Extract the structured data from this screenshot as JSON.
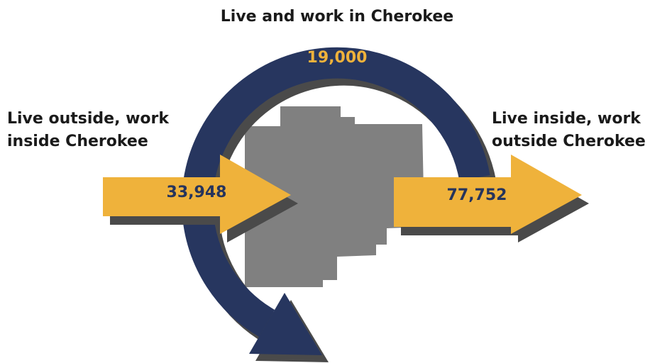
{
  "title": "Live and work in Cherokee",
  "internal": {
    "value": "19,000"
  },
  "inflow": {
    "label_lines": [
      "Live outside, work",
      "inside Cherokee"
    ],
    "value": "33,948"
  },
  "outflow": {
    "label_lines": [
      "Live inside, work",
      "outside Cherokee"
    ],
    "value": "77,752"
  }
}
